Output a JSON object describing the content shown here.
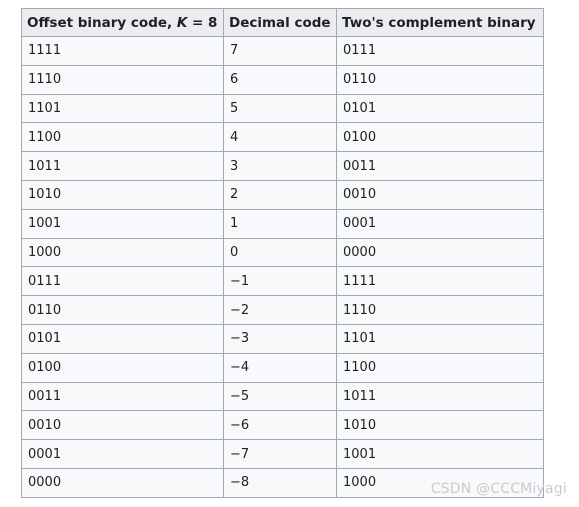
{
  "table": {
    "headers": {
      "offset_prefix": "Offset binary code, ",
      "offset_k": "K",
      "offset_suffix": " = 8",
      "decimal": "Decimal code",
      "twos": "Two's complement binary"
    },
    "rows": [
      {
        "offset": "1111",
        "decimal": "7",
        "twos": "0111"
      },
      {
        "offset": "1110",
        "decimal": "6",
        "twos": "0110"
      },
      {
        "offset": "1101",
        "decimal": "5",
        "twos": "0101"
      },
      {
        "offset": "1100",
        "decimal": "4",
        "twos": "0100"
      },
      {
        "offset": "1011",
        "decimal": "3",
        "twos": "0011"
      },
      {
        "offset": "1010",
        "decimal": "2",
        "twos": "0010"
      },
      {
        "offset": "1001",
        "decimal": "1",
        "twos": "0001"
      },
      {
        "offset": "1000",
        "decimal": "0",
        "twos": "0000"
      },
      {
        "offset": "0111",
        "decimal": "−1",
        "twos": "1111"
      },
      {
        "offset": "0110",
        "decimal": "−2",
        "twos": "1110"
      },
      {
        "offset": "0101",
        "decimal": "−3",
        "twos": "1101"
      },
      {
        "offset": "0100",
        "decimal": "−4",
        "twos": "1100"
      },
      {
        "offset": "0011",
        "decimal": "−5",
        "twos": "1011"
      },
      {
        "offset": "0010",
        "decimal": "−6",
        "twos": "1010"
      },
      {
        "offset": "0001",
        "decimal": "−7",
        "twos": "1001"
      },
      {
        "offset": "0000",
        "decimal": "−8",
        "twos": "1000"
      }
    ]
  },
  "watermark": {
    "text": "CSDN @CCCMiyagi"
  },
  "colors": {
    "header_bg": "#eaecf0",
    "cell_bg": "#f8f9fa",
    "border": "#a2a9b1",
    "text": "#202122",
    "watermark": "#c9cbcf"
  }
}
